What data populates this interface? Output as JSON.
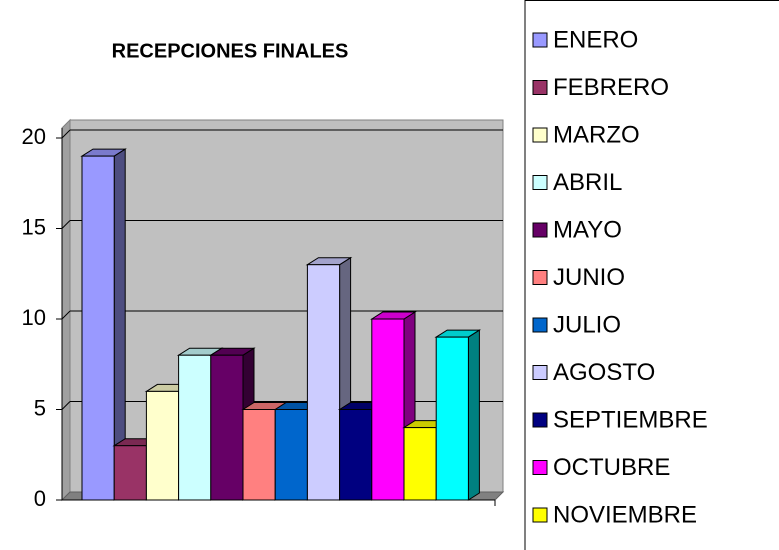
{
  "chart_data": {
    "type": "bar3d",
    "title": "RECEPCIONES FINALES",
    "ylim": [
      0,
      20
    ],
    "yticks": [
      0,
      5,
      10,
      15,
      20
    ],
    "grid": true,
    "legend": "right",
    "series": [
      {
        "name": "ENERO",
        "color": "#9999ff",
        "values": [
          19
        ]
      },
      {
        "name": "FEBRERO",
        "color": "#993366",
        "values": [
          3
        ]
      },
      {
        "name": "MARZO",
        "color": "#ffffcc",
        "values": [
          6
        ]
      },
      {
        "name": "ABRIL",
        "color": "#ccffff",
        "values": [
          8
        ]
      },
      {
        "name": "MAYO",
        "color": "#660066",
        "values": [
          8
        ]
      },
      {
        "name": "JUNIO",
        "color": "#ff8080",
        "values": [
          5
        ]
      },
      {
        "name": "JULIO",
        "color": "#0066cc",
        "values": [
          5
        ]
      },
      {
        "name": "AGOSTO",
        "color": "#ccccff",
        "values": [
          13
        ]
      },
      {
        "name": "SEPTIEMBRE",
        "color": "#000080",
        "values": [
          5
        ]
      },
      {
        "name": "OCTUBRE",
        "color": "#ff00ff",
        "values": [
          10
        ]
      },
      {
        "name": "NOVIEMBRE",
        "color": "#ffff00",
        "values": [
          4
        ]
      },
      {
        "name": null,
        "color": "#00ffff",
        "values": [
          9
        ]
      }
    ]
  }
}
